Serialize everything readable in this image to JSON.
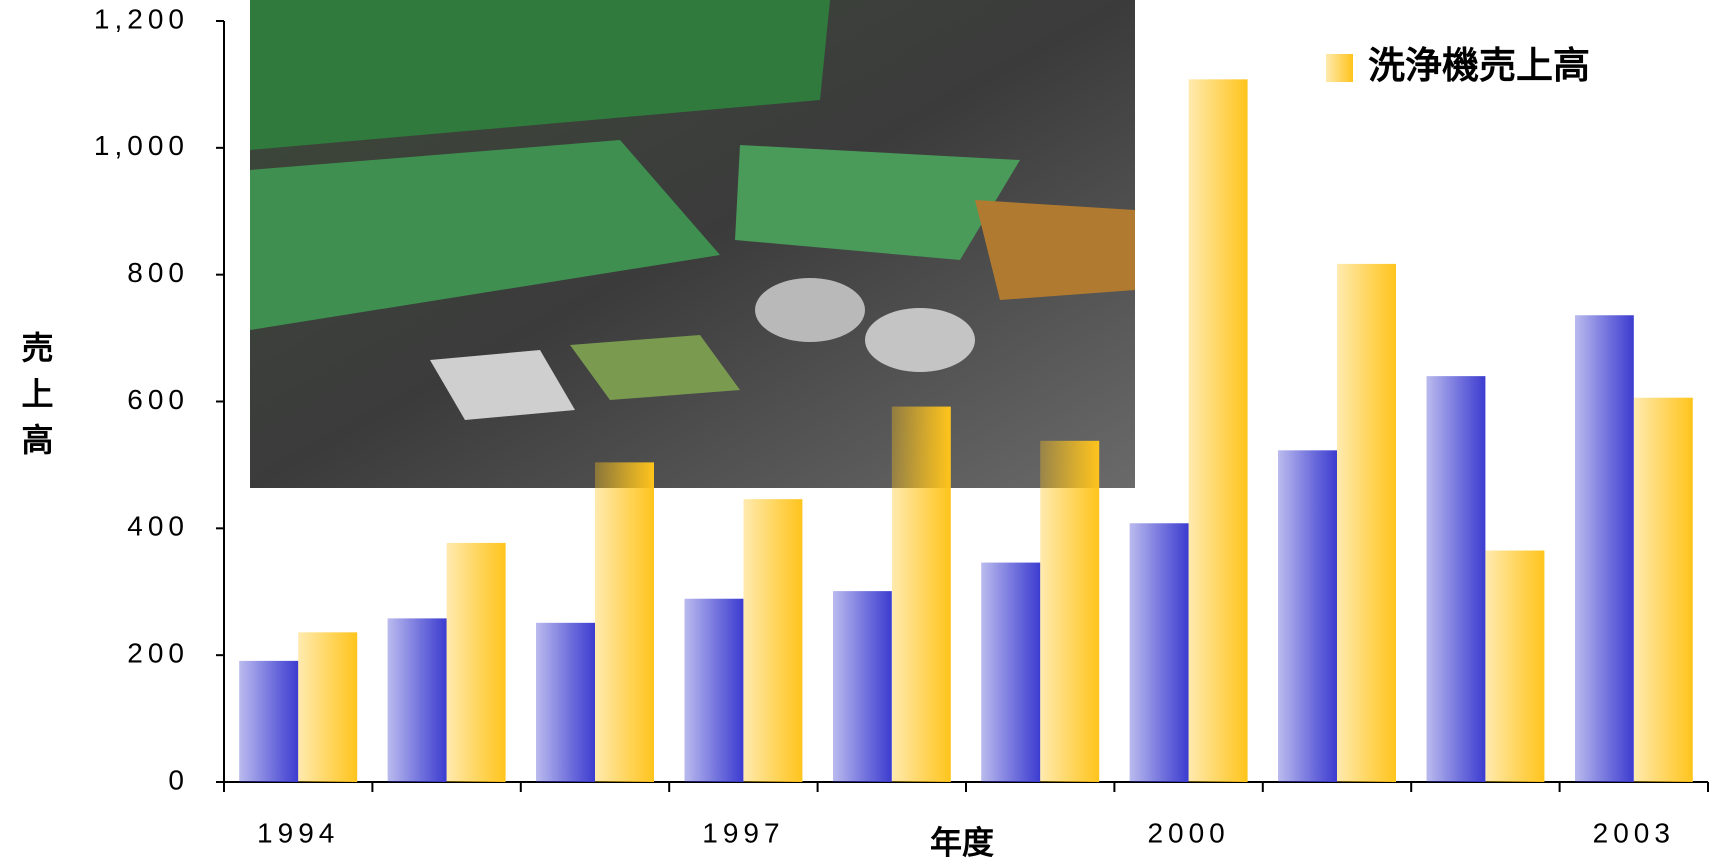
{
  "chart_data": {
    "type": "bar",
    "x_label": "年度",
    "y_label": "売上高",
    "categories": [
      "1994",
      null,
      null,
      "1997",
      null,
      null,
      "2000",
      null,
      null,
      "2003"
    ],
    "series": [
      {
        "color": "#3c3cd0",
        "values": [
          191,
          258,
          251,
          289,
          301,
          346,
          408,
          523,
          640,
          736
        ]
      },
      {
        "name": "洗浄機売上高",
        "color": "#ffc41c",
        "values": [
          236,
          377,
          504,
          446,
          592,
          538,
          1108,
          817,
          365,
          606
        ]
      }
    ],
    "ylim": [
      0,
      1200
    ],
    "yticks": [
      0,
      200,
      400,
      600,
      800,
      {
        "value": 1000,
        "label": "1,000"
      },
      {
        "value": 1200,
        "label": "1,200"
      }
    ],
    "legend": "upper right"
  }
}
